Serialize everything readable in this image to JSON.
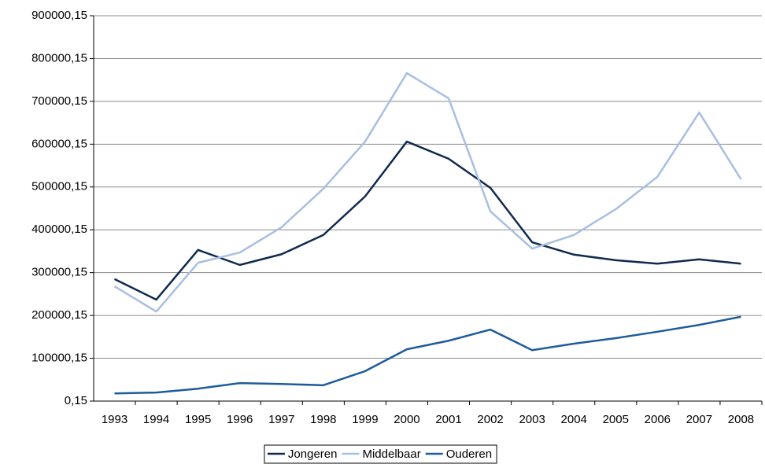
{
  "chart_data": {
    "type": "line",
    "categories": [
      "1993",
      "1994",
      "1995",
      "1996",
      "1997",
      "1998",
      "1999",
      "2000",
      "2001",
      "2002",
      "2003",
      "2004",
      "2005",
      "2006",
      "2007",
      "2008"
    ],
    "series": [
      {
        "name": "Jongeren",
        "color": "#0f2a4d",
        "values": [
          285000,
          237000,
          353000,
          318000,
          343000,
          388000,
          478000,
          606000,
          566000,
          498000,
          371000,
          342000,
          329000,
          321000,
          331000,
          321000
        ]
      },
      {
        "name": "Middelbaar",
        "color": "#a8bfe0",
        "values": [
          268000,
          209000,
          323000,
          347000,
          406000,
          496000,
          606000,
          766000,
          707000,
          443000,
          356000,
          388000,
          448000,
          524000,
          674000,
          518000
        ]
      },
      {
        "name": "Ouderen",
        "color": "#1f5c9c",
        "values": [
          18000,
          20000,
          29000,
          42000,
          40000,
          37000,
          70000,
          121000,
          141000,
          167000,
          119000,
          134000,
          147000,
          162000,
          178000,
          197000
        ]
      }
    ],
    "ylim": [
      0.15,
      900000.15
    ],
    "yticks": [
      {
        "value": 0.15,
        "label": "0,15"
      },
      {
        "value": 100000.15,
        "label": "100000,15"
      },
      {
        "value": 200000.15,
        "label": "200000,15"
      },
      {
        "value": 300000.15,
        "label": "300000,15"
      },
      {
        "value": 400000.15,
        "label": "400000,15"
      },
      {
        "value": 500000.15,
        "label": "500000,15"
      },
      {
        "value": 600000.15,
        "label": "600000,15"
      },
      {
        "value": 700000.15,
        "label": "700000,15"
      },
      {
        "value": 800000.15,
        "label": "800000,15"
      },
      {
        "value": 900000.15,
        "label": "900000,15"
      }
    ],
    "grid": true,
    "legend": "bottom"
  }
}
